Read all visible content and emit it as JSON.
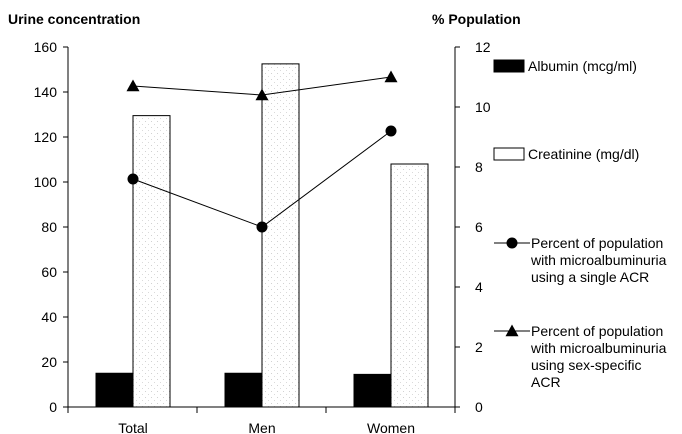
{
  "chart_data": {
    "type": "bar",
    "categories": [
      "Total",
      "Men",
      "Women"
    ],
    "left_axis": {
      "title": "Urine concentration",
      "min": 0,
      "max": 160,
      "step": 20
    },
    "right_axis": {
      "title": "% Population",
      "min": 0,
      "max": 12,
      "step": 2
    },
    "bar_series": [
      {
        "name": "Albumin (mcg/ml)",
        "values": [
          15,
          15,
          14.5
        ],
        "axis": "left",
        "color": "#000000"
      },
      {
        "name": "Creatinine (mg/dl)",
        "values": [
          129.5,
          152.5,
          108
        ],
        "axis": "left",
        "color": "#ffffff"
      }
    ],
    "line_series": [
      {
        "name": [
          "Percent of population",
          "with microalbuminuria",
          "using a single ACR"
        ],
        "values": [
          7.6,
          6.0,
          9.2
        ],
        "axis": "right",
        "marker": "circle"
      },
      {
        "name": [
          "Percent of population",
          "with microalbuminuria",
          "using sex-specific",
          "ACR"
        ],
        "values": [
          10.7,
          10.4,
          11.0
        ],
        "axis": "right",
        "marker": "triangle"
      }
    ],
    "grid": false,
    "legend_position": "right"
  }
}
